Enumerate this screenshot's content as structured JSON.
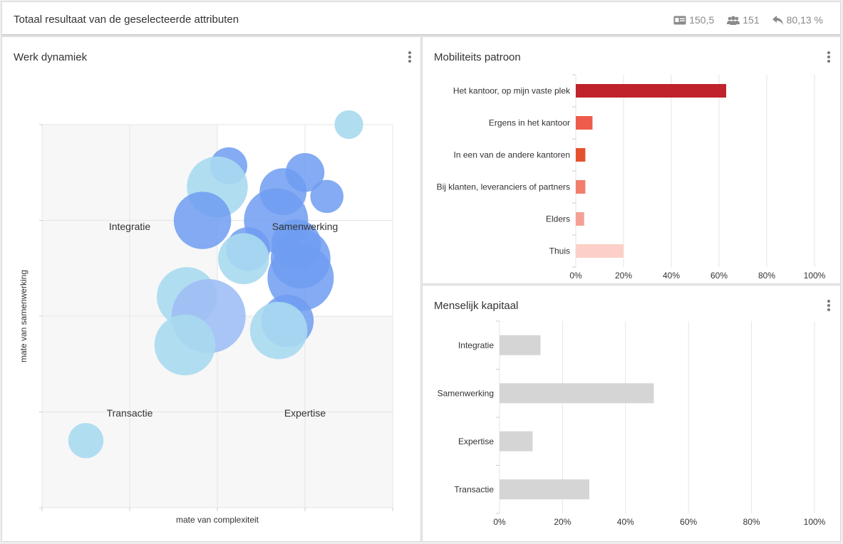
{
  "header": {
    "title": "Totaal resultaat van de geselecteerde attributen",
    "stats": [
      {
        "icon": "id-card-icon",
        "value": "150,5"
      },
      {
        "icon": "users-icon",
        "value": "151"
      },
      {
        "icon": "reply-icon",
        "value": "80,13 %"
      }
    ]
  },
  "panels": {
    "werk": {
      "title": "Werk dynamiek"
    },
    "mobiliteit": {
      "title": "Mobiliteits patroon"
    },
    "mensen": {
      "title": "Menselijk kapitaal"
    }
  },
  "colors": {
    "bubble_light": "#a9d9ef",
    "bubble_blue": "#6f9cf1",
    "bubble_pale": "#a0bef5",
    "bar_grey": "#d5d5d5",
    "mob_bars": [
      "#c0232c",
      "#ee5b4c",
      "#e6512e",
      "#f07e6a",
      "#f5a094",
      "#fcd0c8"
    ]
  },
  "chart_data": [
    {
      "type": "scatter",
      "id": "werk-dynamiek",
      "title": "Werk dynamiek",
      "xlabel": "mate van complexiteit",
      "ylabel": "mate van samenwerking",
      "xlim": [
        0,
        4
      ],
      "ylim": [
        0,
        4
      ],
      "quadrant_labels": [
        "Integratie",
        "Samenwerking",
        "Transactie",
        "Expertise"
      ],
      "points": [
        {
          "x": 3.5,
          "y": 4.0,
          "size": 0.3,
          "color": "light"
        },
        {
          "x": 2.13,
          "y": 3.57,
          "size": 0.5,
          "color": "blue"
        },
        {
          "x": 3.0,
          "y": 3.5,
          "size": 0.55,
          "color": "blue"
        },
        {
          "x": 2.0,
          "y": 3.35,
          "size": 1.35,
          "color": "light"
        },
        {
          "x": 2.75,
          "y": 3.3,
          "size": 0.8,
          "color": "blue"
        },
        {
          "x": 3.25,
          "y": 3.25,
          "size": 0.4,
          "color": "blue"
        },
        {
          "x": 1.83,
          "y": 3.0,
          "size": 1.2,
          "color": "blue"
        },
        {
          "x": 2.67,
          "y": 3.0,
          "size": 1.5,
          "color": "blue"
        },
        {
          "x": 2.9,
          "y": 2.75,
          "size": 0.9,
          "color": "blue"
        },
        {
          "x": 2.35,
          "y": 2.7,
          "size": 0.7,
          "color": "blue"
        },
        {
          "x": 2.3,
          "y": 2.6,
          "size": 0.95,
          "color": "light"
        },
        {
          "x": 2.95,
          "y": 2.6,
          "size": 1.3,
          "color": "blue"
        },
        {
          "x": 2.95,
          "y": 2.4,
          "size": 1.6,
          "color": "blue"
        },
        {
          "x": 1.65,
          "y": 2.2,
          "size": 1.3,
          "color": "light"
        },
        {
          "x": 1.9,
          "y": 2.0,
          "size": 2.0,
          "color": "pale"
        },
        {
          "x": 2.8,
          "y": 1.95,
          "size": 1.0,
          "color": "blue"
        },
        {
          "x": 2.7,
          "y": 1.85,
          "size": 1.2,
          "color": "light"
        },
        {
          "x": 1.63,
          "y": 1.7,
          "size": 1.35,
          "color": "light"
        },
        {
          "x": 0.5,
          "y": 0.7,
          "size": 0.45,
          "color": "light"
        }
      ]
    },
    {
      "type": "bar",
      "id": "mobiliteits-patroon",
      "orientation": "horizontal",
      "title": "Mobiliteits patroon",
      "categories": [
        "Het kantoor, op mijn vaste plek",
        "Ergens in het kantoor",
        "In een van de andere kantoren",
        "Bij klanten, leveranciers of partners",
        "Elders",
        "Thuis"
      ],
      "values": [
        63,
        7,
        4,
        4,
        3.5,
        20
      ],
      "xlim": [
        0,
        100
      ],
      "ticks": [
        "0%",
        "20%",
        "40%",
        "60%",
        "80%",
        "100%"
      ]
    },
    {
      "type": "bar",
      "id": "menselijk-kapitaal",
      "orientation": "horizontal",
      "title": "Menselijk kapitaal",
      "categories": [
        "Integratie",
        "Samenwerking",
        "Expertise",
        "Transactie"
      ],
      "values": [
        13,
        49,
        10.5,
        28.5
      ],
      "xlim": [
        0,
        100
      ],
      "ticks": [
        "0%",
        "20%",
        "40%",
        "60%",
        "80%",
        "100%"
      ]
    }
  ]
}
